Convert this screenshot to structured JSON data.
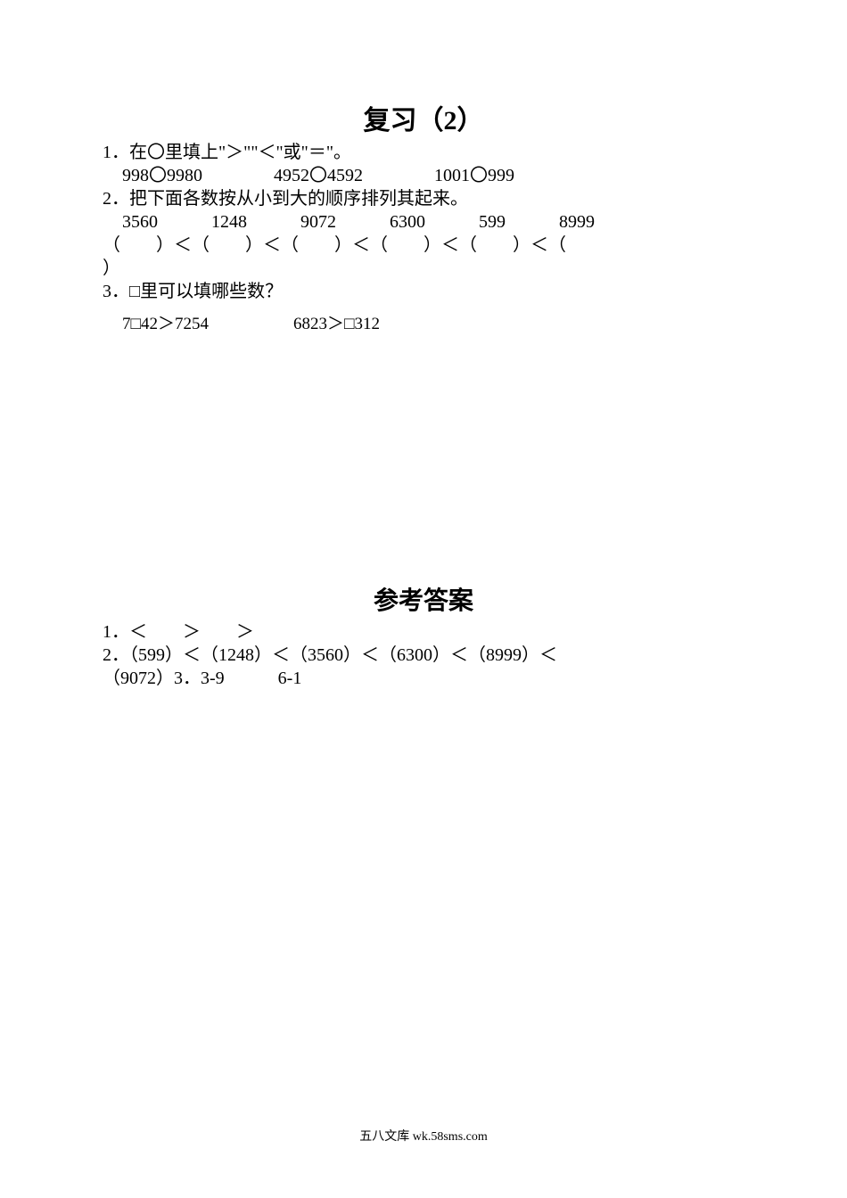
{
  "title": "复习（2）",
  "q1": {
    "prompt": "1．在〇里填上\"＞\"\"＜\"或\"＝\"。",
    "items_line": "998〇9980　　　　4952〇4592　　　　1001〇999"
  },
  "q2": {
    "prompt": "2．把下面各数按从小到大的顺序排列其起来。",
    "numbers_line": "3560　　　1248　　　9072　　　6300　　　599　　　8999",
    "blank_top": "（　　）＜（　　）＜（　　）＜（　　）＜（　　）＜（　",
    "blank_bot": "）"
  },
  "q3": {
    "prompt": "3．□里可以填哪些数？",
    "expr_line": "7□42＞7254　　　　　6823＞□312"
  },
  "answers": {
    "title": "参考答案",
    "a1": "1．＜　　＞　　＞",
    "a2_top": "2．（599）＜（1248）＜（3560）＜（6300）＜（8999）＜",
    "a2_bot": "（9072）3．3-9　　　6-1"
  },
  "footer": "五八文库 wk.58sms.com"
}
